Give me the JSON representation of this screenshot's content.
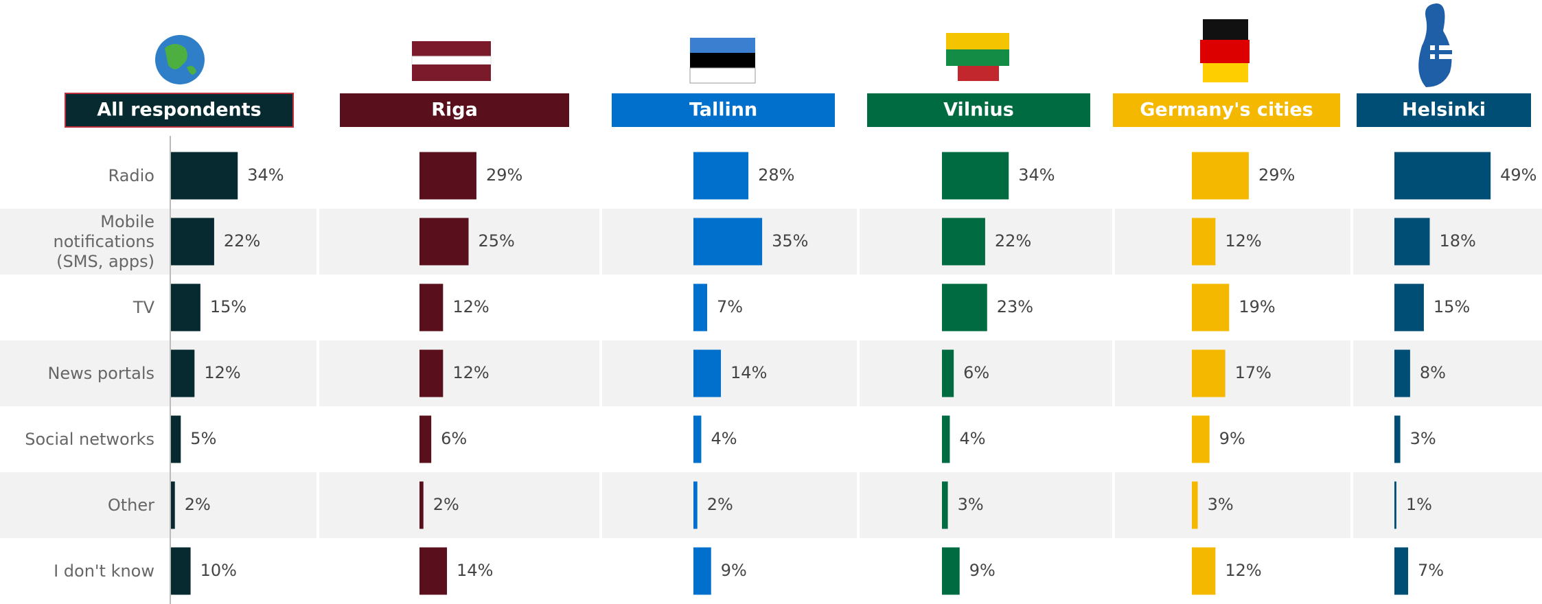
{
  "chart_data": {
    "type": "bar",
    "orientation": "horizontal",
    "categories": [
      "Radio",
      "Mobile notifications (SMS, apps)",
      "TV",
      "News portals",
      "Social networks",
      "Other",
      "I don't know"
    ],
    "xlim": [
      0,
      50
    ],
    "series": [
      {
        "name": "All respondents",
        "color": "#062a30",
        "values": [
          34,
          22,
          15,
          12,
          5,
          2,
          10
        ],
        "value_labels": [
          "34%",
          "22%",
          "15%",
          "12%",
          "5%",
          "2%",
          "10%"
        ]
      },
      {
        "name": "Riga",
        "color": "#59101c",
        "values": [
          29,
          25,
          12,
          12,
          6,
          2,
          14
        ],
        "value_labels": [
          "29%",
          "25%",
          "12%",
          "12%",
          "6%",
          "2%",
          "14%"
        ]
      },
      {
        "name": "Tallinn",
        "color": "#0070cc",
        "values": [
          28,
          35,
          7,
          14,
          4,
          2,
          9
        ],
        "value_labels": [
          "28%",
          "35%",
          "7%",
          "14%",
          "4%",
          "2%",
          "9%"
        ]
      },
      {
        "name": "Vilnius",
        "color": "#006b40",
        "values": [
          34,
          22,
          23,
          6,
          4,
          3,
          9
        ],
        "value_labels": [
          "34%",
          "22%",
          "23%",
          "6%",
          "4%",
          "3%",
          "9%"
        ]
      },
      {
        "name": "Germany's cities",
        "color": "#f5b800",
        "values": [
          29,
          12,
          19,
          17,
          9,
          3,
          12
        ],
        "value_labels": [
          "29%",
          "12%",
          "19%",
          "17%",
          "9%",
          "3%",
          "12%"
        ]
      },
      {
        "name": "Helsinki",
        "color": "#004d75",
        "values": [
          49,
          18,
          15,
          8,
          3,
          1,
          7
        ],
        "value_labels": [
          "49%",
          "18%",
          "15%",
          "8%",
          "3%",
          "1%",
          "7%"
        ]
      }
    ]
  }
}
